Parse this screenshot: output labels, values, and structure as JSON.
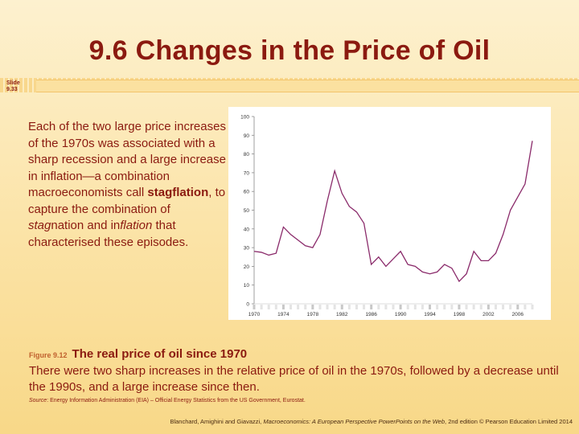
{
  "slide": {
    "title": "9.6  Changes in the Price of Oil",
    "slide_label": "Slide",
    "slide_number": "9.33"
  },
  "body": {
    "p1": "Each of the two large price increases of the 1970s was associated with a sharp recession and a large increase in inflation—a combination macroeconomists call ",
    "term": "stagflation",
    "p2": ", to capture the combination of ",
    "stag": "stag",
    "nation": "nation and in",
    "flation": "flation",
    "p3": " that characterised these episodes."
  },
  "caption": {
    "figure_label": "Figure 9.12",
    "figure_title": "The real price of oil since 1970",
    "text": "There were two sharp increases in the relative price of oil in the 1970s, followed by a decrease until the 1990s, and a large increase since then.",
    "source_label": "Source",
    "source_text": ": Energy Information Administration (EIA)  – Official Energy Statistics from the US Government, Eurostat."
  },
  "footer": {
    "authors": "Blanchard, Amighini and Giavazzi, ",
    "book": "Macroeconomics: A European Perspective PowerPoints on the Web",
    "edition": ", 2nd edition © Pearson Education Limited 2014"
  },
  "colors": {
    "title": "#8b1a10",
    "line": "#8a2a6a"
  },
  "chart_data": {
    "type": "line",
    "title": "",
    "xlabel": "",
    "ylabel": "",
    "ylim": [
      0,
      100
    ],
    "yticks": [
      0,
      10,
      20,
      30,
      40,
      50,
      60,
      70,
      80,
      90,
      100
    ],
    "xlim": [
      1970,
      2008
    ],
    "xtick_labels": [
      "1970",
      "1974",
      "1978",
      "1982",
      "1986",
      "1990",
      "1994",
      "1998",
      "2002",
      "2006"
    ],
    "series": [
      {
        "name": "Real price of oil",
        "x": [
          1970,
          1971,
          1972,
          1973,
          1974,
          1975,
          1976,
          1977,
          1978,
          1979,
          1980,
          1981,
          1982,
          1983,
          1984,
          1985,
          1986,
          1987,
          1988,
          1989,
          1990,
          1991,
          1992,
          1993,
          1994,
          1995,
          1996,
          1997,
          1998,
          1999,
          2000,
          2001,
          2002,
          2003,
          2004,
          2005,
          2006,
          2007,
          2008
        ],
        "values": [
          28,
          27.5,
          26,
          27,
          41,
          37,
          34,
          31,
          30,
          37,
          55,
          71,
          59,
          52,
          49,
          43,
          21,
          25,
          20,
          24,
          28,
          21,
          20,
          17,
          16,
          17,
          21,
          19,
          12,
          16,
          28,
          23,
          23,
          27,
          37,
          50,
          57,
          64,
          87
        ]
      }
    ]
  }
}
